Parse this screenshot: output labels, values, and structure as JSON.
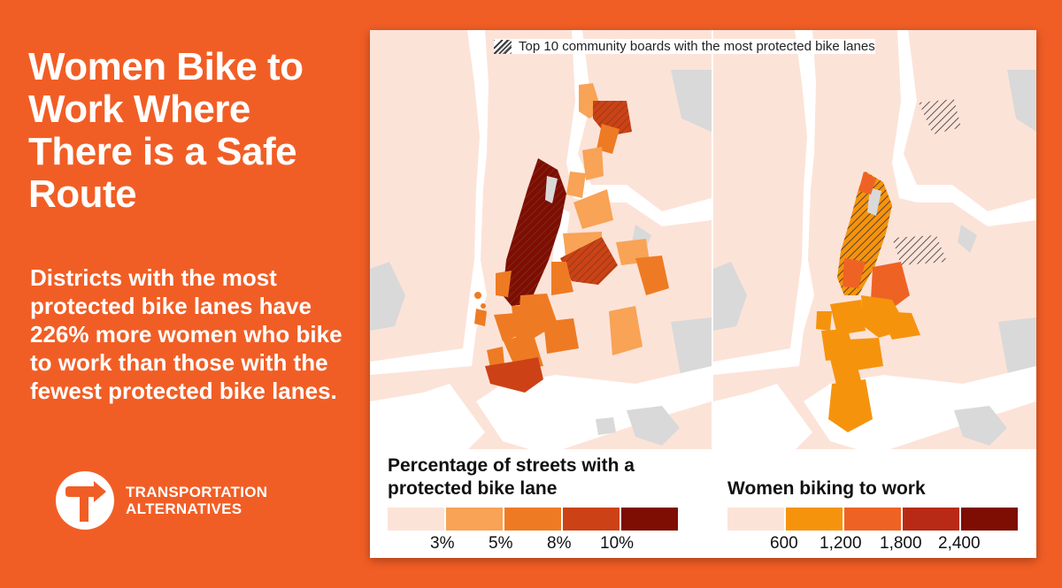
{
  "headline": "Women Bike to Work Where There is a Safe Route",
  "body": "Districts with the most protected bike lanes have 226% more women who bike to work than those with the fewest protected bike lanes.",
  "logo": {
    "line1": "TRANSPORTATION",
    "line2": "ALTERNATIVES"
  },
  "top_legend": "Top 10 community boards with the most protected bike lanes",
  "left_legend": {
    "title": "Percentage of streets with a protected bike lane",
    "colors": [
      "#FCE3D8",
      "#F8A356",
      "#EE7B23",
      "#CC4216",
      "#7E0D04"
    ],
    "ticks": [
      "3%",
      "5%",
      "8%",
      "10%"
    ]
  },
  "right_legend": {
    "title": "Women biking to work",
    "colors": [
      "#FCE3D8",
      "#F6930D",
      "#EE6324",
      "#B82A15",
      "#7E0D04"
    ],
    "ticks": [
      "600",
      "1,200",
      "1,800",
      "2,400"
    ]
  },
  "colors": {
    "background": "#F15E25",
    "land": "#FCE3D8",
    "other_land": "#D9D9D9",
    "water": "#FFFFFF"
  }
}
